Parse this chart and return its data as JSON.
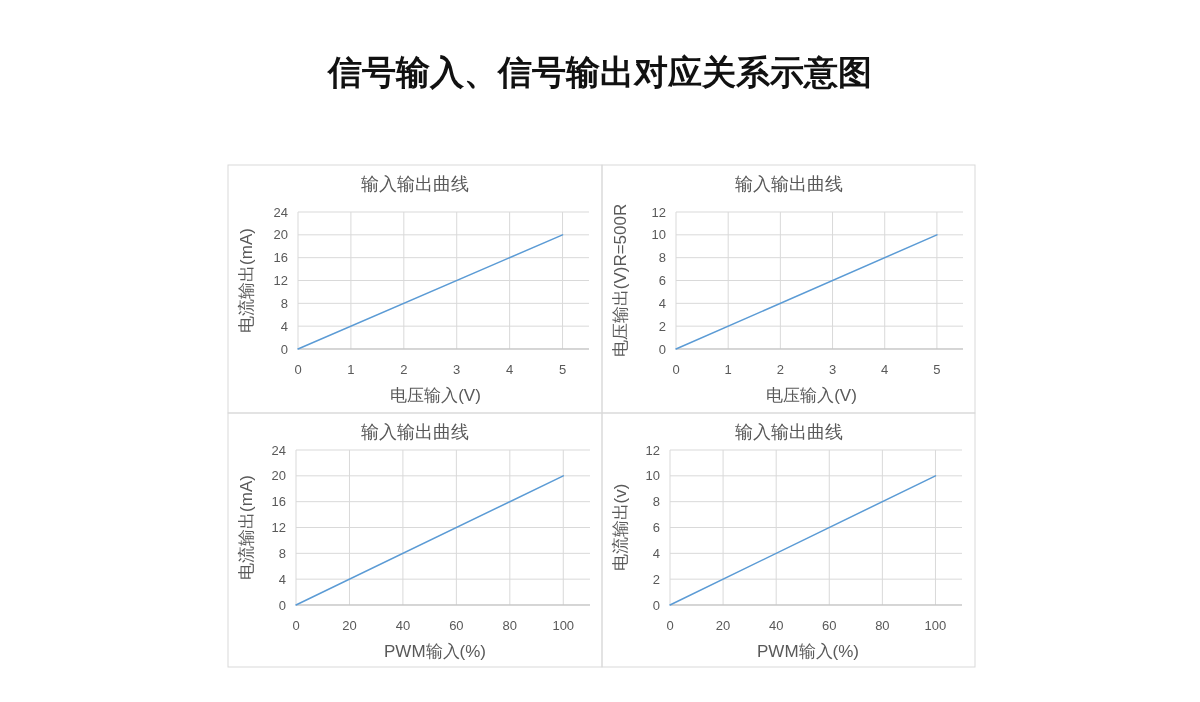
{
  "chart_data": [
    {
      "type": "other",
      "title": "信号输入、信号输出对应关系示意图"
    },
    {
      "type": "line",
      "title": "输入输出曲线",
      "xlabel": "电压输入(V)",
      "ylabel": "电流输出(mA)",
      "x": [
        0,
        5
      ],
      "values": [
        0,
        20
      ],
      "color": "#5b9bd5",
      "xlim": [
        0,
        5.5
      ],
      "xticks": [
        0,
        1,
        2,
        3,
        4,
        5
      ],
      "ylim": [
        0,
        24
      ],
      "yticks": [
        0,
        4,
        8,
        12,
        16,
        20,
        24
      ],
      "grid": true
    },
    {
      "type": "line",
      "title": "输入输出曲线",
      "xlabel": "电压输入(V)",
      "ylabel": "电压输出(V)R=500R",
      "x": [
        0,
        5
      ],
      "values": [
        0,
        10
      ],
      "color": "#5b9bd5",
      "xlim": [
        0,
        5.5
      ],
      "xticks": [
        0,
        1,
        2,
        3,
        4,
        5
      ],
      "ylim": [
        0,
        12
      ],
      "yticks": [
        0,
        2,
        4,
        6,
        8,
        10,
        12
      ],
      "grid": true
    },
    {
      "type": "line",
      "title": "输入输出曲线",
      "xlabel": "PWM输入(%)",
      "ylabel": "电流输出(mA)",
      "x": [
        0,
        100
      ],
      "values": [
        0,
        20
      ],
      "color": "#5b9bd5",
      "xlim": [
        0,
        110
      ],
      "xticks": [
        0,
        20,
        40,
        60,
        80,
        100
      ],
      "ylim": [
        0,
        24
      ],
      "yticks": [
        0,
        4,
        8,
        12,
        16,
        20,
        24
      ],
      "grid": true
    },
    {
      "type": "line",
      "title": "输入输出曲线",
      "xlabel": "PWM输入(%)",
      "ylabel": "电流输出(v)",
      "x": [
        0,
        100
      ],
      "values": [
        0,
        10
      ],
      "color": "#5b9bd5",
      "xlim": [
        0,
        110
      ],
      "xticks": [
        0,
        20,
        40,
        60,
        80,
        100
      ],
      "ylim": [
        0,
        12
      ],
      "yticks": [
        0,
        2,
        4,
        6,
        8,
        10,
        12
      ],
      "grid": true
    }
  ]
}
